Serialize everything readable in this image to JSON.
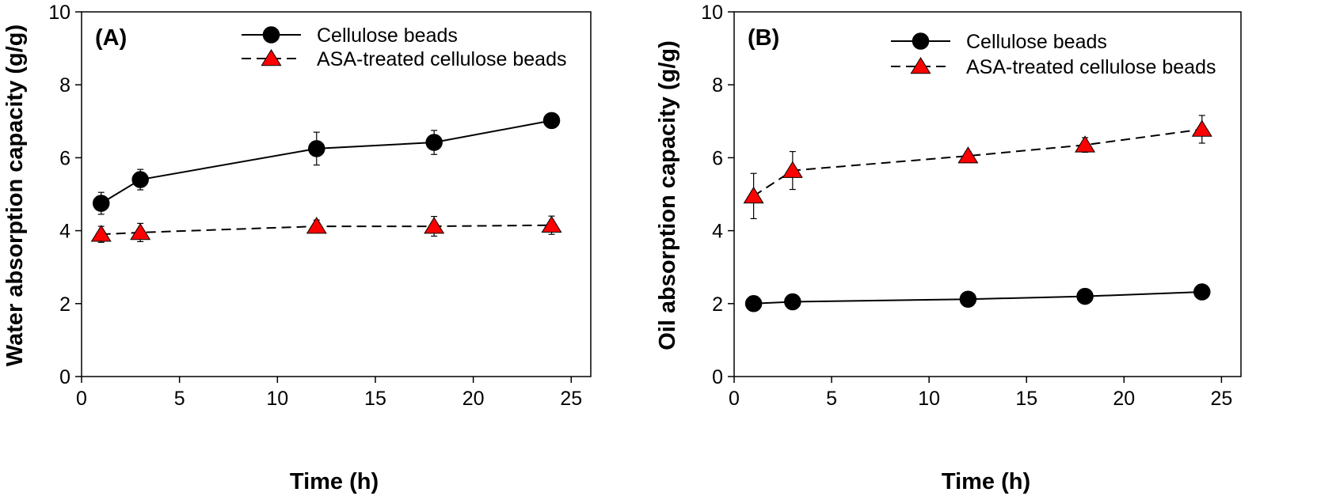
{
  "colors": {
    "cellulose_marker": "#000000",
    "asa_marker": "#ff0000",
    "axis": "#000000",
    "background": "#ffffff"
  },
  "chart_data": [
    {
      "type": "line",
      "panel_label": "(A)",
      "xlabel": "Time (h)",
      "ylabel": "Water absorption capacity (g/g)",
      "xlim": [
        0,
        26
      ],
      "ylim": [
        0,
        10
      ],
      "xticks": [
        "0",
        "5",
        "10",
        "15",
        "20",
        "25"
      ],
      "yticks": [
        "0",
        "2",
        "4",
        "6",
        "8",
        "10"
      ],
      "grid": false,
      "legend_position": "top-right",
      "series": [
        {
          "name": "Cellulose beads",
          "marker": "circle",
          "line_style": "solid",
          "color": "#000000",
          "x": [
            1,
            3,
            12,
            18,
            24
          ],
          "y": [
            4.75,
            5.4,
            6.25,
            6.42,
            7.02
          ],
          "error": [
            0.3,
            0.28,
            0.45,
            0.33,
            0.2
          ]
        },
        {
          "name": "ASA-treated cellulose beads",
          "marker": "triangle",
          "line_style": "dashed",
          "color": "#ff0000",
          "x": [
            1,
            3,
            12,
            18,
            24
          ],
          "y": [
            3.9,
            3.95,
            4.12,
            4.12,
            4.15
          ],
          "error": [
            0.22,
            0.25,
            0.17,
            0.27,
            0.25
          ]
        }
      ]
    },
    {
      "type": "line",
      "panel_label": "(B)",
      "xlabel": "Time (h)",
      "ylabel": "Oil absorption capacity (g/g)",
      "xlim": [
        0,
        26
      ],
      "ylim": [
        0,
        10
      ],
      "xticks": [
        "0",
        "5",
        "10",
        "15",
        "20",
        "25"
      ],
      "yticks": [
        "0",
        "2",
        "4",
        "6",
        "8",
        "10"
      ],
      "grid": false,
      "legend_position": "top-right",
      "series": [
        {
          "name": "Cellulose beads",
          "marker": "circle",
          "line_style": "solid",
          "color": "#000000",
          "x": [
            1,
            3,
            12,
            18,
            24
          ],
          "y": [
            2.0,
            2.05,
            2.12,
            2.2,
            2.32
          ],
          "error": [
            0.18,
            0.2,
            0.1,
            0.1,
            0.1
          ]
        },
        {
          "name": "ASA-treated cellulose beads",
          "marker": "triangle",
          "line_style": "dashed",
          "color": "#ff0000",
          "x": [
            1,
            3,
            12,
            18,
            24
          ],
          "y": [
            4.95,
            5.65,
            6.05,
            6.35,
            6.78
          ],
          "error": [
            0.62,
            0.52,
            0.12,
            0.2,
            0.38
          ]
        }
      ]
    }
  ]
}
